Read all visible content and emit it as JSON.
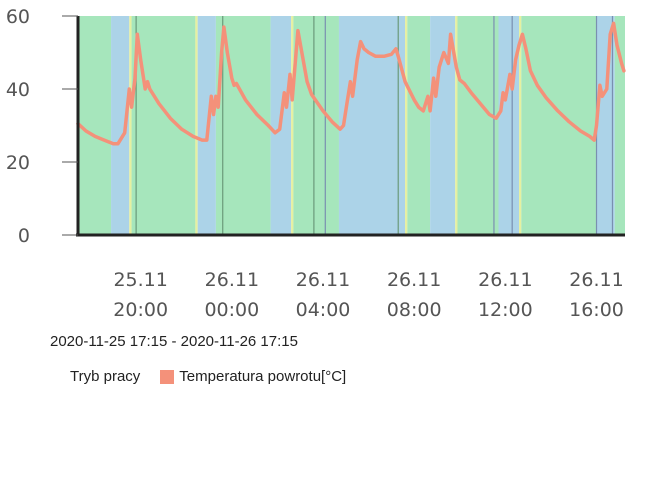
{
  "chart_data": {
    "type": "line",
    "title": "",
    "xlabel": "",
    "ylabel": "",
    "ylim": [
      0,
      60
    ],
    "yticks": [
      "0",
      "20",
      "40",
      "60"
    ],
    "xlim": [
      17.25,
      41.25
    ],
    "xticks": [
      {
        "t": 20,
        "date": "25.11",
        "time": "20:00"
      },
      {
        "t": 24,
        "date": "26.11",
        "time": "00:00"
      },
      {
        "t": 28,
        "date": "26.11",
        "time": "04:00"
      },
      {
        "t": 32,
        "date": "26.11",
        "time": "08:00"
      },
      {
        "t": 36,
        "date": "26.11",
        "time": "12:00"
      },
      {
        "t": 40,
        "date": "26.11",
        "time": "16:00"
      }
    ],
    "mode_colors": {
      "heating": "#a6e6bc",
      "hot_water": "#acd3e8",
      "transition": "#e6f0a0"
    },
    "mode_bands": [
      {
        "mode": "heating",
        "from": 17.25,
        "to": 18.7
      },
      {
        "mode": "hot_water",
        "from": 18.7,
        "to": 19.5
      },
      {
        "mode": "transition",
        "from": 19.5,
        "to": 19.6
      },
      {
        "mode": "heating",
        "from": 19.6,
        "to": 22.4
      },
      {
        "mode": "transition",
        "from": 22.4,
        "to": 22.5
      },
      {
        "mode": "hot_water",
        "from": 22.5,
        "to": 23.3
      },
      {
        "mode": "heating",
        "from": 23.3,
        "to": 25.7
      },
      {
        "mode": "hot_water",
        "from": 25.7,
        "to": 26.6
      },
      {
        "mode": "transition",
        "from": 26.6,
        "to": 26.7
      },
      {
        "mode": "heating",
        "from": 26.7,
        "to": 28.7
      },
      {
        "mode": "hot_water",
        "from": 28.7,
        "to": 31.6
      },
      {
        "mode": "transition",
        "from": 31.6,
        "to": 31.7
      },
      {
        "mode": "heating",
        "from": 31.7,
        "to": 32.7
      },
      {
        "mode": "hot_water",
        "from": 32.7,
        "to": 33.8
      },
      {
        "mode": "transition",
        "from": 33.8,
        "to": 33.9
      },
      {
        "mode": "heating",
        "from": 33.9,
        "to": 35.7
      },
      {
        "mode": "hot_water",
        "from": 35.7,
        "to": 36.6
      },
      {
        "mode": "transition",
        "from": 36.6,
        "to": 36.7
      },
      {
        "mode": "heating",
        "from": 36.7,
        "to": 40.0
      },
      {
        "mode": "hot_water",
        "from": 40.0,
        "to": 40.8
      },
      {
        "mode": "heating",
        "from": 40.8,
        "to": 41.25
      }
    ],
    "mode_markers": [
      {
        "t": 19.8,
        "mode": "heating"
      },
      {
        "t": 23.6,
        "mode": "heating"
      },
      {
        "t": 27.6,
        "mode": "heating"
      },
      {
        "t": 28.1,
        "mode": "hot_water"
      },
      {
        "t": 31.3,
        "mode": "heating"
      },
      {
        "t": 35.5,
        "mode": "hot_water"
      },
      {
        "t": 36.3,
        "mode": "hot_water"
      },
      {
        "t": 40.0,
        "mode": "hot_water"
      },
      {
        "t": 40.7,
        "mode": "hot_water"
      }
    ],
    "series": [
      {
        "name": "Temperatura powrotu[°C]",
        "color": "#f4917a",
        "points": [
          [
            17.25,
            30.5
          ],
          [
            17.6,
            28.5
          ],
          [
            18.0,
            27.0
          ],
          [
            18.4,
            26.0
          ],
          [
            18.8,
            25.0
          ],
          [
            19.0,
            25.0
          ],
          [
            19.3,
            28.0
          ],
          [
            19.5,
            40.0
          ],
          [
            19.6,
            35.0
          ],
          [
            19.75,
            43.0
          ],
          [
            19.85,
            55.0
          ],
          [
            20.0,
            48.0
          ],
          [
            20.2,
            40.0
          ],
          [
            20.3,
            42.0
          ],
          [
            20.4,
            40.0
          ],
          [
            20.8,
            36.0
          ],
          [
            21.3,
            32.0
          ],
          [
            21.8,
            29.0
          ],
          [
            22.3,
            27.0
          ],
          [
            22.7,
            26.0
          ],
          [
            22.9,
            26.0
          ],
          [
            23.1,
            38.0
          ],
          [
            23.2,
            33.0
          ],
          [
            23.3,
            38.0
          ],
          [
            23.4,
            35.0
          ],
          [
            23.55,
            50.0
          ],
          [
            23.65,
            57.0
          ],
          [
            23.8,
            50.0
          ],
          [
            24.0,
            43.0
          ],
          [
            24.1,
            41.0
          ],
          [
            24.2,
            41.5
          ],
          [
            24.6,
            37.0
          ],
          [
            25.1,
            33.0
          ],
          [
            25.6,
            30.0
          ],
          [
            25.9,
            28.0
          ],
          [
            26.1,
            29.0
          ],
          [
            26.3,
            39.0
          ],
          [
            26.4,
            35.0
          ],
          [
            26.55,
            44.0
          ],
          [
            26.65,
            37.0
          ],
          [
            26.9,
            56.0
          ],
          [
            27.1,
            49.0
          ],
          [
            27.3,
            42.0
          ],
          [
            27.5,
            38.5
          ],
          [
            28.0,
            34.0
          ],
          [
            28.4,
            31.0
          ],
          [
            28.75,
            29.0
          ],
          [
            28.9,
            30.0
          ],
          [
            29.05,
            36.0
          ],
          [
            29.2,
            42.0
          ],
          [
            29.3,
            38.0
          ],
          [
            29.5,
            48.0
          ],
          [
            29.65,
            53.0
          ],
          [
            29.8,
            51.0
          ],
          [
            30.0,
            50.0
          ],
          [
            30.3,
            49.0
          ],
          [
            30.7,
            49.0
          ],
          [
            31.0,
            49.5
          ],
          [
            31.2,
            51.0
          ],
          [
            31.3,
            49.0
          ],
          [
            31.6,
            42.0
          ],
          [
            32.0,
            37.0
          ],
          [
            32.2,
            35.0
          ],
          [
            32.4,
            34.0
          ],
          [
            32.6,
            38.0
          ],
          [
            32.7,
            34.0
          ],
          [
            32.85,
            43.0
          ],
          [
            32.95,
            38.0
          ],
          [
            33.1,
            46.0
          ],
          [
            33.3,
            50.0
          ],
          [
            33.5,
            47.0
          ],
          [
            33.6,
            55.0
          ],
          [
            33.85,
            46.0
          ],
          [
            34.0,
            42.5
          ],
          [
            34.2,
            41.5
          ],
          [
            34.5,
            39.0
          ],
          [
            34.9,
            36.0
          ],
          [
            35.3,
            33.0
          ],
          [
            35.6,
            32.0
          ],
          [
            35.8,
            34.0
          ],
          [
            35.9,
            39.0
          ],
          [
            36.0,
            37.0
          ],
          [
            36.2,
            44.0
          ],
          [
            36.3,
            40.0
          ],
          [
            36.45,
            48.0
          ],
          [
            36.6,
            52.0
          ],
          [
            36.75,
            55.0
          ],
          [
            36.9,
            51.0
          ],
          [
            37.1,
            45.0
          ],
          [
            37.4,
            41.0
          ],
          [
            37.8,
            37.5
          ],
          [
            38.3,
            34.0
          ],
          [
            38.8,
            31.0
          ],
          [
            39.3,
            28.5
          ],
          [
            39.7,
            27.0
          ],
          [
            39.9,
            26.0
          ],
          [
            40.0,
            30.0
          ],
          [
            40.15,
            41.0
          ],
          [
            40.25,
            38.0
          ],
          [
            40.45,
            40.0
          ],
          [
            40.6,
            55.0
          ],
          [
            40.75,
            58.0
          ],
          [
            40.9,
            52.0
          ],
          [
            41.1,
            47.0
          ],
          [
            41.2,
            45.0
          ]
        ]
      }
    ],
    "legend": [
      {
        "label": "Tryb pracy",
        "swatch": false
      },
      {
        "label": "Temperatura powrotu[°C]",
        "swatch": true,
        "color": "#f4917a"
      }
    ]
  },
  "range_label": "2020-11-25 17:15 - 2020-11-26 17:15"
}
